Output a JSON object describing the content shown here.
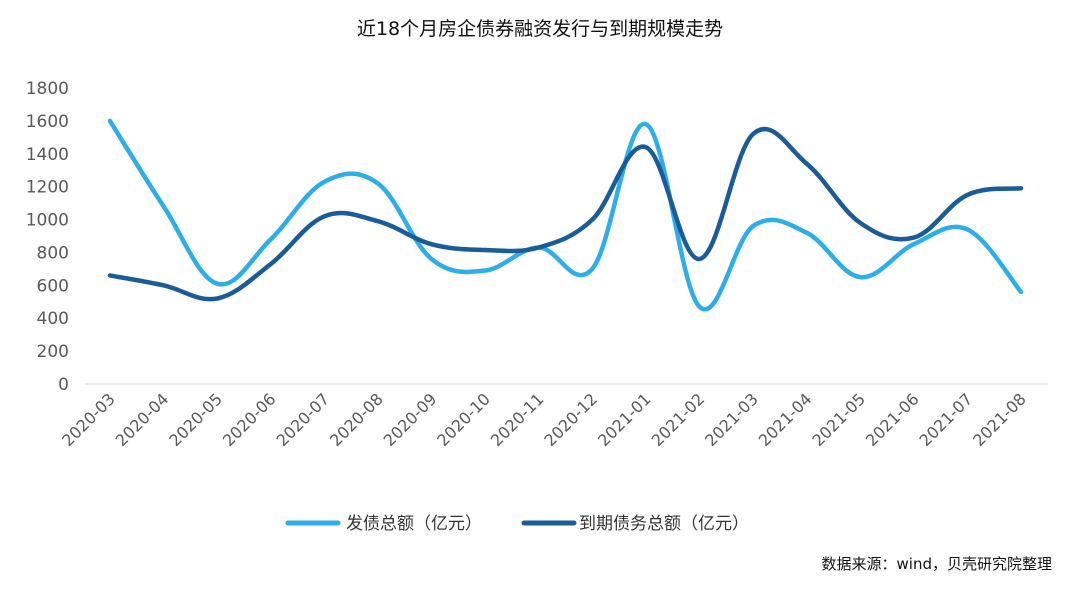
{
  "title": "近18个月房企债券融资发行与到期规模走势",
  "source": "数据来源：wind，贝壳研究院整理",
  "chart_data": {
    "type": "line",
    "title": "近18个月房企债券融资发行与到期规模走势",
    "categories": [
      "2020-03",
      "2020-04",
      "2020-05",
      "2020-06",
      "2020-07",
      "2020-08",
      "2020-09",
      "2020-10",
      "2020-11",
      "2020-12",
      "2021-01",
      "2021-02",
      "2021-03",
      "2021-04",
      "2021-05",
      "2021-06",
      "2021-07",
      "2021-08"
    ],
    "ylim": [
      0,
      1800
    ],
    "yticks": [
      0,
      200,
      400,
      600,
      800,
      1000,
      1200,
      1400,
      1600,
      1800
    ],
    "grid": false,
    "legend_position": "bottom",
    "series": [
      {
        "name": "发债总额（亿元）",
        "color": "#2eaee8",
        "values": [
          1600,
          1080,
          610,
          880,
          1230,
          1220,
          760,
          690,
          830,
          700,
          1580,
          470,
          960,
          920,
          650,
          850,
          940,
          560
        ]
      },
      {
        "name": "到期债务总额（亿元）",
        "color": "#1a5c98",
        "values": [
          660,
          600,
          520,
          730,
          1020,
          990,
          850,
          815,
          830,
          1000,
          1440,
          760,
          1520,
          1340,
          980,
          890,
          1150,
          1190
        ]
      }
    ]
  }
}
